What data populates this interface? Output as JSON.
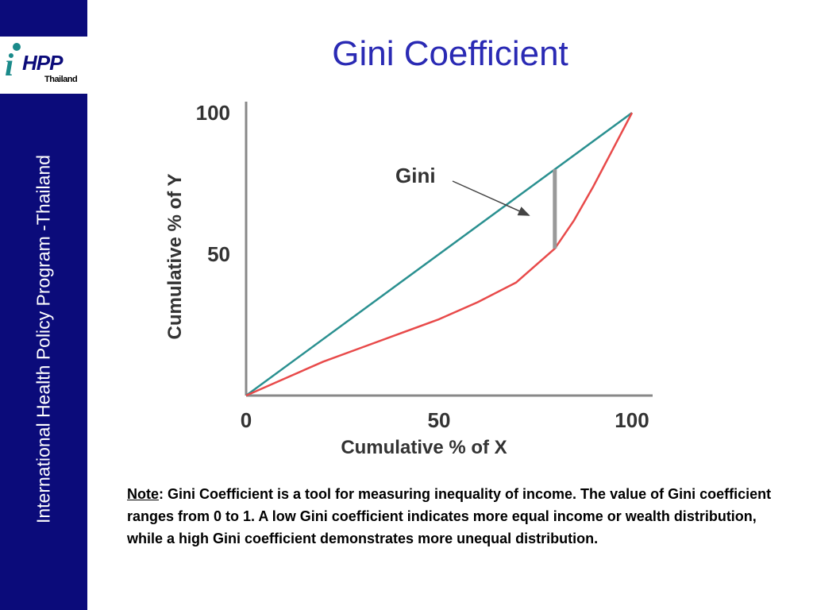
{
  "sidebar": {
    "org_name": "International Health Policy Program -Thailand",
    "logo": {
      "letter": "i",
      "text": "HPP",
      "subtext": "Thailand"
    },
    "background_color": "#0b0b7a"
  },
  "slide": {
    "title": "Gini Coefficient",
    "title_color": "#2a2ab4"
  },
  "note": {
    "label": "Note",
    "text": ": Gini Coefficient is a tool for measuring inequality of income. The value of Gini coefficient ranges from 0 to 1.  A low Gini coefficient indicates more equal income or wealth distribution, while a high Gini coefficient demonstrates more unequal distribution."
  },
  "chart_data": {
    "type": "line",
    "xlabel": "Cumulative % of X",
    "ylabel": "Cumulative % of Y",
    "xlim": [
      0,
      100
    ],
    "ylim": [
      0,
      100
    ],
    "x_ticks": [
      0,
      50,
      100
    ],
    "y_ticks": [
      50,
      100
    ],
    "grid": false,
    "series": [
      {
        "color": "#2a9090",
        "x": [
          0,
          100
        ],
        "y": [
          0,
          100
        ]
      },
      {
        "color": "#e84a4a",
        "x": [
          0,
          10,
          20,
          30,
          40,
          50,
          60,
          70,
          80,
          85,
          90,
          95,
          100
        ],
        "y": [
          0,
          6,
          12,
          17,
          22,
          27,
          33,
          40,
          52,
          62,
          74,
          87,
          100
        ]
      }
    ],
    "annotation": {
      "text": "Gini",
      "gap_x": 80,
      "arrow_end": {
        "x": 72.5,
        "y": 64
      },
      "color": "#999999"
    }
  }
}
